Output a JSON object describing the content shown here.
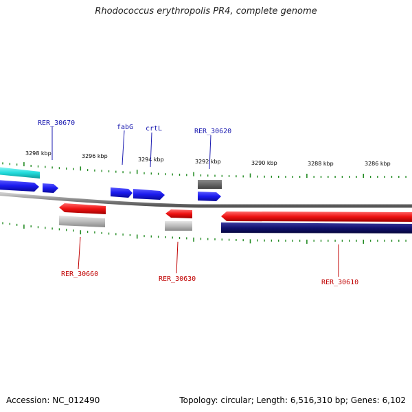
{
  "title": "Rhodococcus erythropolis PR4, complete genome",
  "accession": "Accession: NC_012490",
  "stats": "Topology: circular; Length: 6,516,310 bp; Genes: 6,102",
  "colors": {
    "forward_gene": "#1a1aee",
    "reverse_gene": "#ee1111",
    "grey_feature": "#bbbbbb",
    "dark_grey_feature": "#666666",
    "cyan_feature": "#22dddd",
    "navy_feature": "#11116e",
    "backbone": "#888888",
    "tick": "#228b22",
    "label_forward": "#1a1ab0",
    "label_reverse": "#c00000"
  },
  "scale_labels": [
    "3298 kbp",
    "3296 kbp",
    "3294 kbp",
    "3292 kbp",
    "3290 kbp",
    "3288 kbp",
    "3286 kbp"
  ],
  "forward_labels": [
    "RER_30670",
    "fabG",
    "crtL",
    "RER_30620"
  ],
  "reverse_labels": [
    "RER_30660",
    "RER_30630",
    "RER_30610"
  ]
}
